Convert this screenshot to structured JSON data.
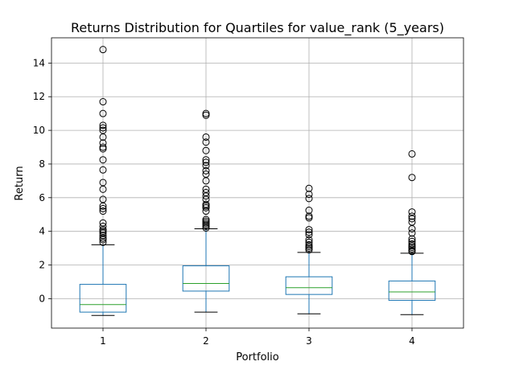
{
  "chart_data": {
    "type": "boxplot",
    "title": "Returns Distribution for Quartiles for value_rank (5_years)",
    "xlabel": "Portfolio",
    "ylabel": "Return",
    "categories": [
      "1",
      "2",
      "3",
      "4"
    ],
    "ylim": [
      -1.75,
      15.5
    ],
    "yticks": [
      0,
      2,
      4,
      6,
      8,
      10,
      12,
      14
    ],
    "grid": true,
    "colors": {
      "box": "#1f77b4",
      "median": "#2ca02c",
      "flier": "#000000",
      "grid": "#b0b0b0"
    },
    "boxes": [
      {
        "category": "1",
        "whisker_low": -1.0,
        "q1": -0.8,
        "median": -0.35,
        "q3": 0.85,
        "whisker_high": 3.2,
        "fliers": [
          3.35,
          3.5,
          3.6,
          3.75,
          3.9,
          4.0,
          4.1,
          4.3,
          4.5,
          5.2,
          5.35,
          5.5,
          5.9,
          6.5,
          6.9,
          7.65,
          8.25,
          8.9,
          9.0,
          9.25,
          9.6,
          10.0,
          10.15,
          10.3,
          11.0,
          11.7,
          14.8
        ]
      },
      {
        "category": "2",
        "whisker_low": -0.8,
        "q1": 0.45,
        "median": 0.9,
        "q3": 1.95,
        "whisker_high": 4.15,
        "fliers": [
          4.2,
          4.3,
          4.4,
          4.5,
          4.6,
          4.7,
          5.2,
          5.4,
          5.5,
          5.6,
          5.9,
          6.1,
          6.3,
          6.5,
          7.0,
          7.4,
          7.6,
          7.9,
          8.1,
          8.25,
          8.8,
          9.3,
          9.6,
          10.9,
          11.0
        ]
      },
      {
        "category": "3",
        "whisker_low": -0.9,
        "q1": 0.25,
        "median": 0.65,
        "q3": 1.3,
        "whisker_high": 2.75,
        "fliers": [
          2.9,
          3.0,
          3.1,
          3.2,
          3.35,
          3.5,
          3.8,
          3.95,
          4.1,
          4.8,
          4.9,
          5.25,
          5.95,
          6.2,
          6.55
        ]
      },
      {
        "category": "4",
        "whisker_low": -0.95,
        "q1": -0.1,
        "median": 0.4,
        "q3": 1.05,
        "whisker_high": 2.7,
        "fliers": [
          2.8,
          2.85,
          2.95,
          3.05,
          3.15,
          3.25,
          3.4,
          3.55,
          3.9,
          4.15,
          4.55,
          4.75,
          4.9,
          5.15,
          7.2,
          8.6
        ]
      }
    ]
  }
}
